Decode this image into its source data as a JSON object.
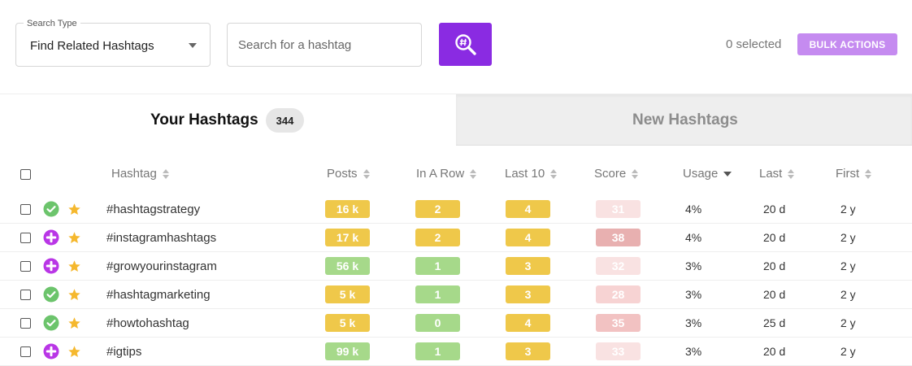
{
  "toolbar": {
    "search_type_label": "Search Type",
    "search_type_value": "Find Related Hashtags",
    "search_placeholder": "Search for a hashtag",
    "search_button_icon": "hashtag-search-icon",
    "selected_count": "0 selected",
    "bulk_actions_label": "BULK ACTIONS",
    "accent_color": "#8a2be2"
  },
  "tabs": {
    "your_hashtags": {
      "label": "Your Hashtags",
      "count": "344"
    },
    "new_hashtags": {
      "label": "New Hashtags"
    }
  },
  "table": {
    "columns": {
      "hashtag": "Hashtag",
      "posts": "Posts",
      "in_a_row": "In A Row",
      "last_10": "Last 10",
      "score": "Score",
      "usage": "Usage",
      "last": "Last",
      "first": "First"
    },
    "sorted_column": "Usage",
    "rows": [
      {
        "status": "check",
        "tag": "#hashtagstrategy",
        "posts": "16 k",
        "in_a_row": "2",
        "last_10": "4",
        "score": "31",
        "usage": "4%",
        "last": "20 d",
        "first": "2 y"
      },
      {
        "status": "plus",
        "tag": "#instagramhashtags",
        "posts": "17 k",
        "in_a_row": "2",
        "last_10": "4",
        "score": "38",
        "usage": "4%",
        "last": "20 d",
        "first": "2 y"
      },
      {
        "status": "plus",
        "tag": "#growyourinstagram",
        "posts": "56 k",
        "in_a_row": "1",
        "last_10": "3",
        "score": "32",
        "usage": "3%",
        "last": "20 d",
        "first": "2 y"
      },
      {
        "status": "check",
        "tag": "#hashtagmarketing",
        "posts": "5 k",
        "in_a_row": "1",
        "last_10": "3",
        "score": "28",
        "usage": "3%",
        "last": "20 d",
        "first": "2 y"
      },
      {
        "status": "check",
        "tag": "#howtohashtag",
        "posts": "5 k",
        "in_a_row": "0",
        "last_10": "4",
        "score": "35",
        "usage": "3%",
        "last": "25 d",
        "first": "2 y"
      },
      {
        "status": "plus",
        "tag": "#igtips",
        "posts": "99 k",
        "in_a_row": "1",
        "last_10": "3",
        "score": "33",
        "usage": "3%",
        "last": "20 d",
        "first": "2 y"
      }
    ],
    "colors": {
      "yellow": "#efc84a",
      "green": "#a6d98a",
      "check": "#6cc46c",
      "plus": "#b936e6",
      "star": "#f5b82e",
      "score": [
        "#f9e2e2",
        "#f7d3d3",
        "#f2c2c2",
        "#e8b0b0"
      ]
    }
  }
}
